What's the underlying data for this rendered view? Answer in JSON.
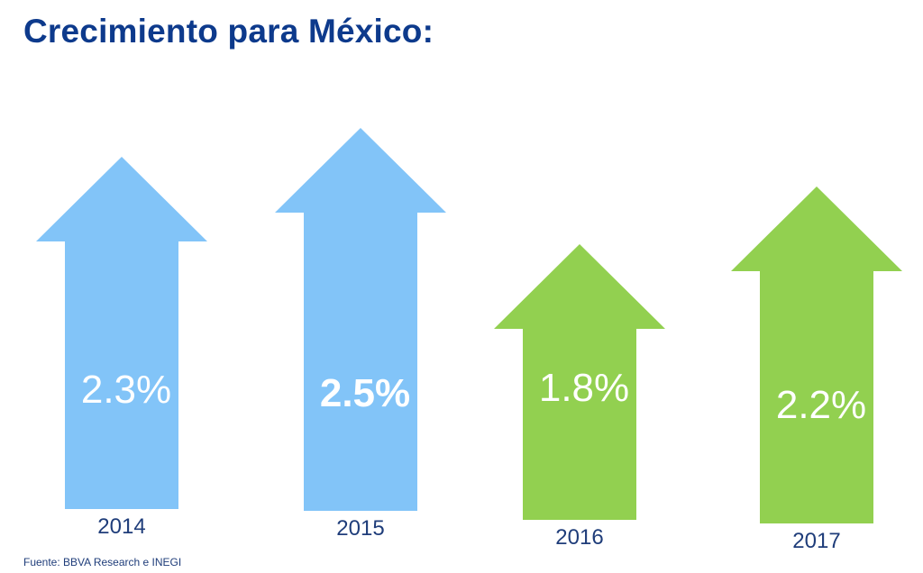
{
  "chart_data": {
    "type": "bar",
    "title": "Crecimiento para México:",
    "categories": [
      "2014",
      "2015",
      "2016",
      "2017"
    ],
    "values": [
      2.3,
      2.5,
      1.8,
      2.2
    ],
    "value_labels": [
      "2.3%",
      "2.5%",
      "1.8%",
      "2.2%"
    ],
    "label_bold": [
      false,
      true,
      false,
      false
    ],
    "unit": "%",
    "bar_shape": "up-arrow",
    "colors": [
      "#82c4f8",
      "#82c4f8",
      "#92d050",
      "#92d050"
    ],
    "value_label_color": "#ffffff",
    "category_label_color": "#1f3d7a",
    "title_color": "#0d3a8c",
    "grid": false,
    "legend": "none"
  },
  "source": "Fuente: BBVA Research e INEGI"
}
